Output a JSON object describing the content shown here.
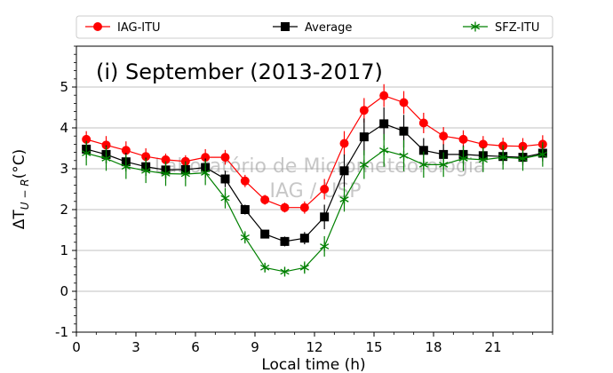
{
  "chart_data": {
    "type": "line",
    "title": "(i) September (2013-2017)",
    "xlabel": "Local time (h)",
    "ylabel": "ΔT_{U−R}(°C)",
    "xlim": [
      0,
      24
    ],
    "ylim": [
      -1,
      6
    ],
    "xticks": [
      0,
      3,
      6,
      9,
      12,
      15,
      18,
      21
    ],
    "yticks": [
      -1,
      0,
      1,
      2,
      3,
      4,
      5
    ],
    "grid": "horizontal",
    "legend_placement": "top",
    "watermark": [
      "Laboratório de Micrometeorologia",
      "IAG / USP"
    ],
    "x": [
      0.5,
      1.5,
      2.5,
      3.5,
      4.5,
      5.5,
      6.5,
      7.5,
      8.5,
      9.5,
      10.5,
      11.5,
      12.5,
      13.5,
      14.5,
      15.5,
      16.5,
      17.5,
      18.5,
      19.5,
      20.5,
      21.5,
      22.5,
      23.5
    ],
    "series": [
      {
        "name": "IAG-ITU",
        "color": "#ff0000",
        "marker": "circle",
        "values": [
          3.72,
          3.58,
          3.45,
          3.3,
          3.22,
          3.18,
          3.28,
          3.28,
          2.7,
          2.24,
          2.05,
          2.05,
          2.5,
          3.62,
          4.43,
          4.79,
          4.62,
          4.12,
          3.8,
          3.72,
          3.6,
          3.56,
          3.55,
          3.6
        ],
        "errors": [
          0.2,
          0.22,
          0.22,
          0.2,
          0.15,
          0.15,
          0.2,
          0.18,
          0.15,
          0.12,
          0.12,
          0.15,
          0.25,
          0.3,
          0.3,
          0.28,
          0.28,
          0.25,
          0.22,
          0.22,
          0.2,
          0.2,
          0.2,
          0.22
        ]
      },
      {
        "name": "Average",
        "color": "#000000",
        "marker": "square",
        "values": [
          3.48,
          3.35,
          3.17,
          3.05,
          2.97,
          2.98,
          3.03,
          2.75,
          2.0,
          1.4,
          1.22,
          1.3,
          1.82,
          2.95,
          3.78,
          4.1,
          3.92,
          3.45,
          3.35,
          3.35,
          3.32,
          3.3,
          3.28,
          3.38
        ],
        "errors": [
          0.2,
          0.22,
          0.22,
          0.22,
          0.2,
          0.2,
          0.22,
          0.2,
          0.12,
          0.1,
          0.12,
          0.15,
          0.3,
          0.4,
          0.45,
          0.4,
          0.4,
          0.3,
          0.25,
          0.22,
          0.2,
          0.2,
          0.2,
          0.2
        ]
      },
      {
        "name": "SFZ-ITU",
        "color": "#008000",
        "marker": "star",
        "values": [
          3.38,
          3.25,
          3.05,
          2.95,
          2.88,
          2.87,
          2.9,
          2.28,
          1.32,
          0.58,
          0.48,
          0.58,
          1.1,
          2.25,
          3.1,
          3.45,
          3.32,
          3.1,
          3.1,
          3.25,
          3.22,
          3.28,
          3.25,
          3.35
        ],
        "errors": [
          0.3,
          0.3,
          0.3,
          0.3,
          0.3,
          0.3,
          0.3,
          0.25,
          0.15,
          0.1,
          0.1,
          0.15,
          0.25,
          0.3,
          0.35,
          0.4,
          0.38,
          0.32,
          0.3,
          0.3,
          0.3,
          0.3,
          0.3,
          0.3
        ]
      }
    ]
  }
}
